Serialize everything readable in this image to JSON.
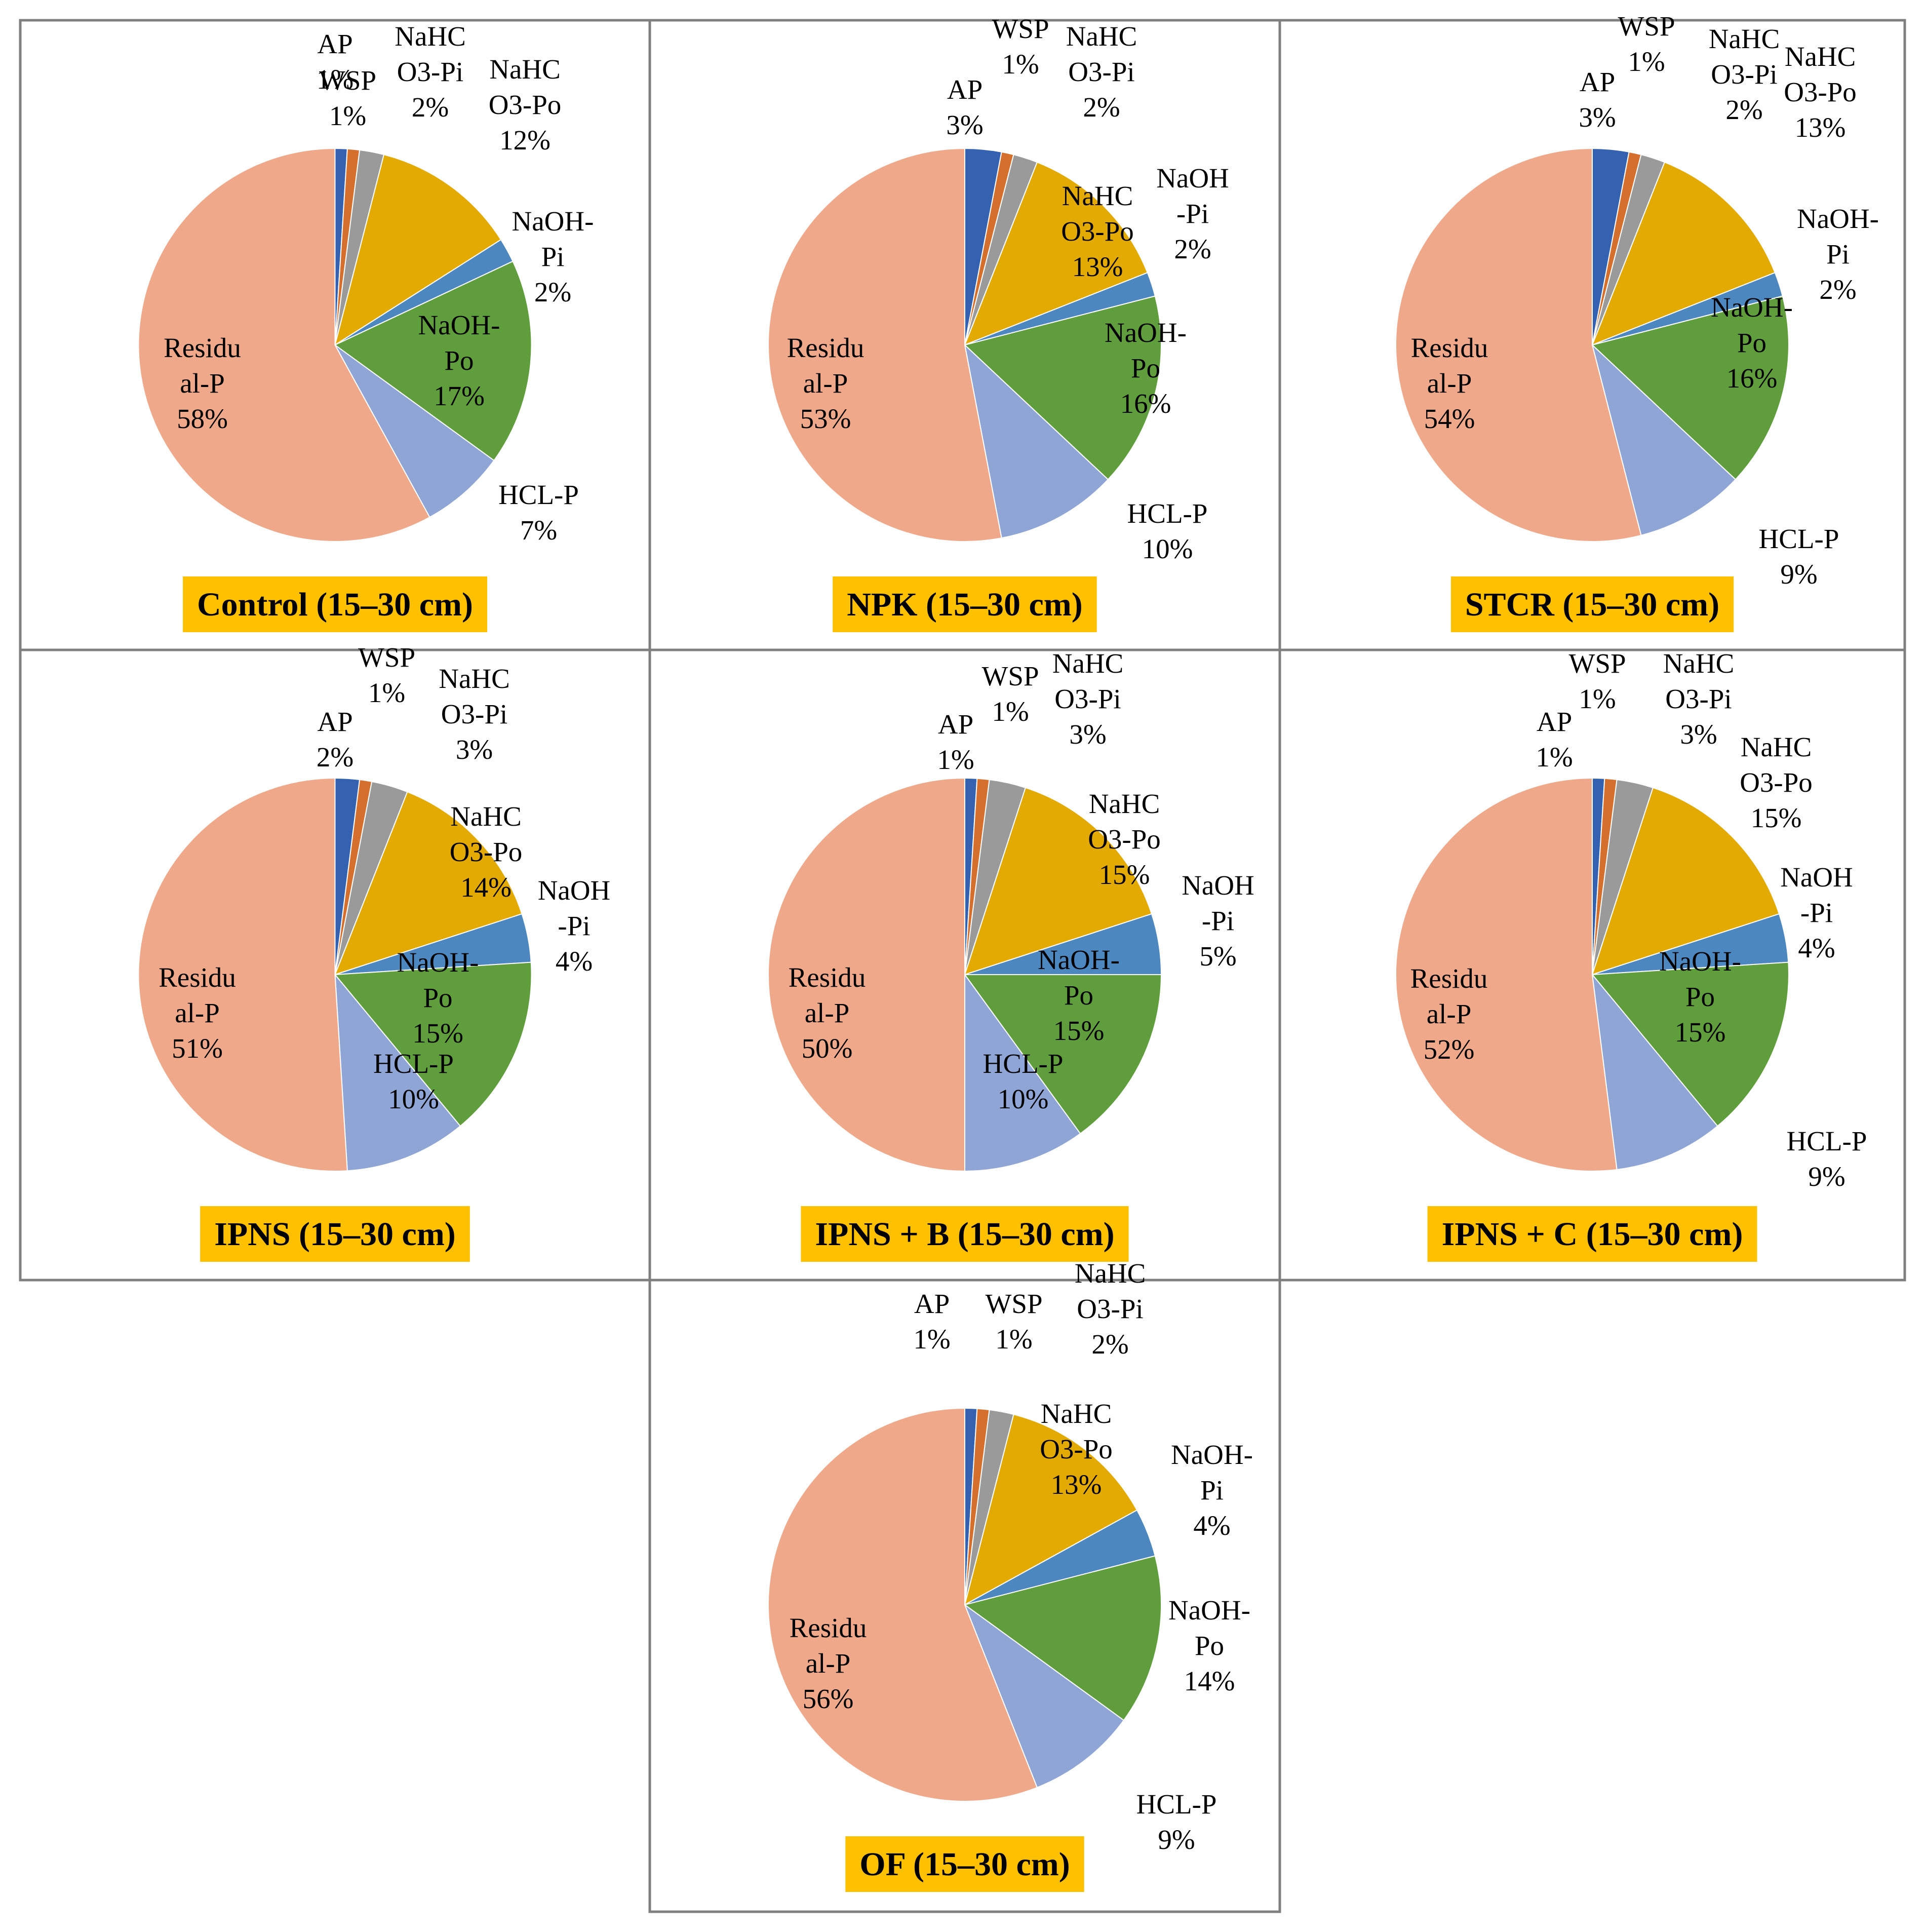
{
  "colors": {
    "AP": "#3461B0",
    "WSP": "#D56F2E",
    "NaHCO3-Pi": "#9A9A9A",
    "NaHCO3-Po": "#E2AA03",
    "NaOH-Pi": "#4D87C0",
    "NaOH-Po": "#609D3C",
    "HCL-P": "#8FA5D5",
    "Residual-P": "#EFA98A",
    "title_bg": "#FFC000",
    "border": "#7F7F7F"
  },
  "chart_data": [
    {
      "type": "pie",
      "title": "Control (15–30 cm)",
      "slices": [
        {
          "key": "AP",
          "lines": [
            "AP",
            "1%"
          ],
          "value": 1
        },
        {
          "key": "WSP",
          "lines": [
            "WSP",
            "1%"
          ],
          "value": 1
        },
        {
          "key": "NaHCO3-Pi",
          "lines": [
            "NaHC",
            "O3-Pi",
            "2%"
          ],
          "value": 2
        },
        {
          "key": "NaHCO3-Po",
          "lines": [
            "NaHC",
            "O3-Po",
            "12%"
          ],
          "value": 12
        },
        {
          "key": "NaOH-Pi",
          "lines": [
            "NaOH-",
            "Pi",
            "2%"
          ],
          "value": 2
        },
        {
          "key": "NaOH-Po",
          "lines": [
            "NaOH-",
            "Po",
            "17%"
          ],
          "value": 17
        },
        {
          "key": "HCL-P",
          "lines": [
            "HCL-P",
            "7%"
          ],
          "value": 7
        },
        {
          "key": "Residual-P",
          "lines": [
            "Residu",
            "al-P",
            "58%"
          ],
          "value": 58
        }
      ]
    },
    {
      "type": "pie",
      "title": "NPK (15–30 cm)",
      "slices": [
        {
          "key": "AP",
          "lines": [
            "AP",
            "3%"
          ],
          "value": 3
        },
        {
          "key": "WSP",
          "lines": [
            "WSP",
            "1%"
          ],
          "value": 1
        },
        {
          "key": "NaHCO3-Pi",
          "lines": [
            "NaHC",
            "O3-Pi",
            "2%"
          ],
          "value": 2
        },
        {
          "key": "NaHCO3-Po",
          "lines": [
            "NaHC",
            "O3-Po",
            "13%"
          ],
          "value": 13
        },
        {
          "key": "NaOH-Pi",
          "lines": [
            "NaOH",
            "-Pi",
            "2%"
          ],
          "value": 2
        },
        {
          "key": "NaOH-Po",
          "lines": [
            "NaOH-",
            "Po",
            "16%"
          ],
          "value": 16
        },
        {
          "key": "HCL-P",
          "lines": [
            "HCL-P",
            "10%"
          ],
          "value": 10
        },
        {
          "key": "Residual-P",
          "lines": [
            "Residu",
            "al-P",
            "53%"
          ],
          "value": 53
        }
      ]
    },
    {
      "type": "pie",
      "title": "STCR (15–30 cm)",
      "slices": [
        {
          "key": "AP",
          "lines": [
            "AP",
            "3%"
          ],
          "value": 3
        },
        {
          "key": "WSP",
          "lines": [
            "WSP",
            "1%"
          ],
          "value": 1
        },
        {
          "key": "NaHCO3-Pi",
          "lines": [
            "NaHC",
            "O3-Pi",
            "2%"
          ],
          "value": 2
        },
        {
          "key": "NaHCO3-Po",
          "lines": [
            "NaHC",
            "O3-Po",
            "13%"
          ],
          "value": 13
        },
        {
          "key": "NaOH-Pi",
          "lines": [
            "NaOH-",
            "Pi",
            "2%"
          ],
          "value": 2
        },
        {
          "key": "NaOH-Po",
          "lines": [
            "NaOH-",
            "Po",
            "16%"
          ],
          "value": 16
        },
        {
          "key": "HCL-P",
          "lines": [
            "HCL-P",
            "9%"
          ],
          "value": 9
        },
        {
          "key": "Residual-P",
          "lines": [
            "Residu",
            "al-P",
            "54%"
          ],
          "value": 54
        }
      ]
    },
    {
      "type": "pie",
      "title": "IPNS (15–30 cm)",
      "slices": [
        {
          "key": "AP",
          "lines": [
            "AP",
            "2%"
          ],
          "value": 2
        },
        {
          "key": "WSP",
          "lines": [
            "WSP",
            "1%"
          ],
          "value": 1
        },
        {
          "key": "NaHCO3-Pi",
          "lines": [
            "NaHC",
            "O3-Pi",
            "3%"
          ],
          "value": 3
        },
        {
          "key": "NaHCO3-Po",
          "lines": [
            "NaHC",
            "O3-Po",
            "14%"
          ],
          "value": 14
        },
        {
          "key": "NaOH-Pi",
          "lines": [
            "NaOH",
            "-Pi",
            "4%"
          ],
          "value": 4
        },
        {
          "key": "NaOH-Po",
          "lines": [
            "NaOH-",
            "Po",
            "15%"
          ],
          "value": 15
        },
        {
          "key": "HCL-P",
          "lines": [
            "HCL-P",
            "10%"
          ],
          "value": 10
        },
        {
          "key": "Residual-P",
          "lines": [
            "Residu",
            "al-P",
            "51%"
          ],
          "value": 51
        }
      ]
    },
    {
      "type": "pie",
      "title": "IPNS + B (15–30 cm)",
      "slices": [
        {
          "key": "AP",
          "lines": [
            "AP",
            "1%"
          ],
          "value": 1
        },
        {
          "key": "WSP",
          "lines": [
            "WSP",
            "1%"
          ],
          "value": 1
        },
        {
          "key": "NaHCO3-Pi",
          "lines": [
            "NaHC",
            "O3-Pi",
            "3%"
          ],
          "value": 3
        },
        {
          "key": "NaHCO3-Po",
          "lines": [
            "NaHC",
            "O3-Po",
            "15%"
          ],
          "value": 15
        },
        {
          "key": "NaOH-Pi",
          "lines": [
            "NaOH",
            "-Pi",
            "5%"
          ],
          "value": 5
        },
        {
          "key": "NaOH-Po",
          "lines": [
            "NaOH-",
            "Po",
            "15%"
          ],
          "value": 15
        },
        {
          "key": "HCL-P",
          "lines": [
            "HCL-P",
            "10%"
          ],
          "value": 10
        },
        {
          "key": "Residual-P",
          "lines": [
            "Residu",
            "al-P",
            "50%"
          ],
          "value": 50
        }
      ]
    },
    {
      "type": "pie",
      "title": "IPNS + C (15–30 cm)",
      "slices": [
        {
          "key": "AP",
          "lines": [
            "AP",
            "1%"
          ],
          "value": 1
        },
        {
          "key": "WSP",
          "lines": [
            "WSP",
            "1%"
          ],
          "value": 1
        },
        {
          "key": "NaHCO3-Pi",
          "lines": [
            "NaHC",
            "O3-Pi",
            "3%"
          ],
          "value": 3
        },
        {
          "key": "NaHCO3-Po",
          "lines": [
            "NaHC",
            "O3-Po",
            "15%"
          ],
          "value": 15
        },
        {
          "key": "NaOH-Pi",
          "lines": [
            "NaOH",
            "-Pi",
            "4%"
          ],
          "value": 4
        },
        {
          "key": "NaOH-Po",
          "lines": [
            "NaOH-",
            "Po",
            "15%"
          ],
          "value": 15
        },
        {
          "key": "HCL-P",
          "lines": [
            "HCL-P",
            "9%"
          ],
          "value": 9
        },
        {
          "key": "Residual-P",
          "lines": [
            "Residu",
            "al-P",
            "52%"
          ],
          "value": 52
        }
      ]
    },
    {
      "type": "pie",
      "title": "OF (15–30 cm)",
      "slices": [
        {
          "key": "AP",
          "lines": [
            "AP",
            "1%"
          ],
          "value": 1
        },
        {
          "key": "WSP",
          "lines": [
            "WSP",
            "1%"
          ],
          "value": 1
        },
        {
          "key": "NaHCO3-Pi",
          "lines": [
            "NaHC",
            "O3-Pi",
            "2%"
          ],
          "value": 2
        },
        {
          "key": "NaHCO3-Po",
          "lines": [
            "NaHC",
            "O3-Po",
            "13%"
          ],
          "value": 13
        },
        {
          "key": "NaOH-Pi",
          "lines": [
            "NaOH-",
            "Pi",
            "4%"
          ],
          "value": 4
        },
        {
          "key": "NaOH-Po",
          "lines": [
            "NaOH-",
            "Po",
            "14%"
          ],
          "value": 14
        },
        {
          "key": "HCL-P",
          "lines": [
            "HCL-P",
            "9%"
          ],
          "value": 9
        },
        {
          "key": "Residual-P",
          "lines": [
            "Residu",
            "al-P",
            "56%"
          ],
          "value": 56
        }
      ]
    }
  ]
}
